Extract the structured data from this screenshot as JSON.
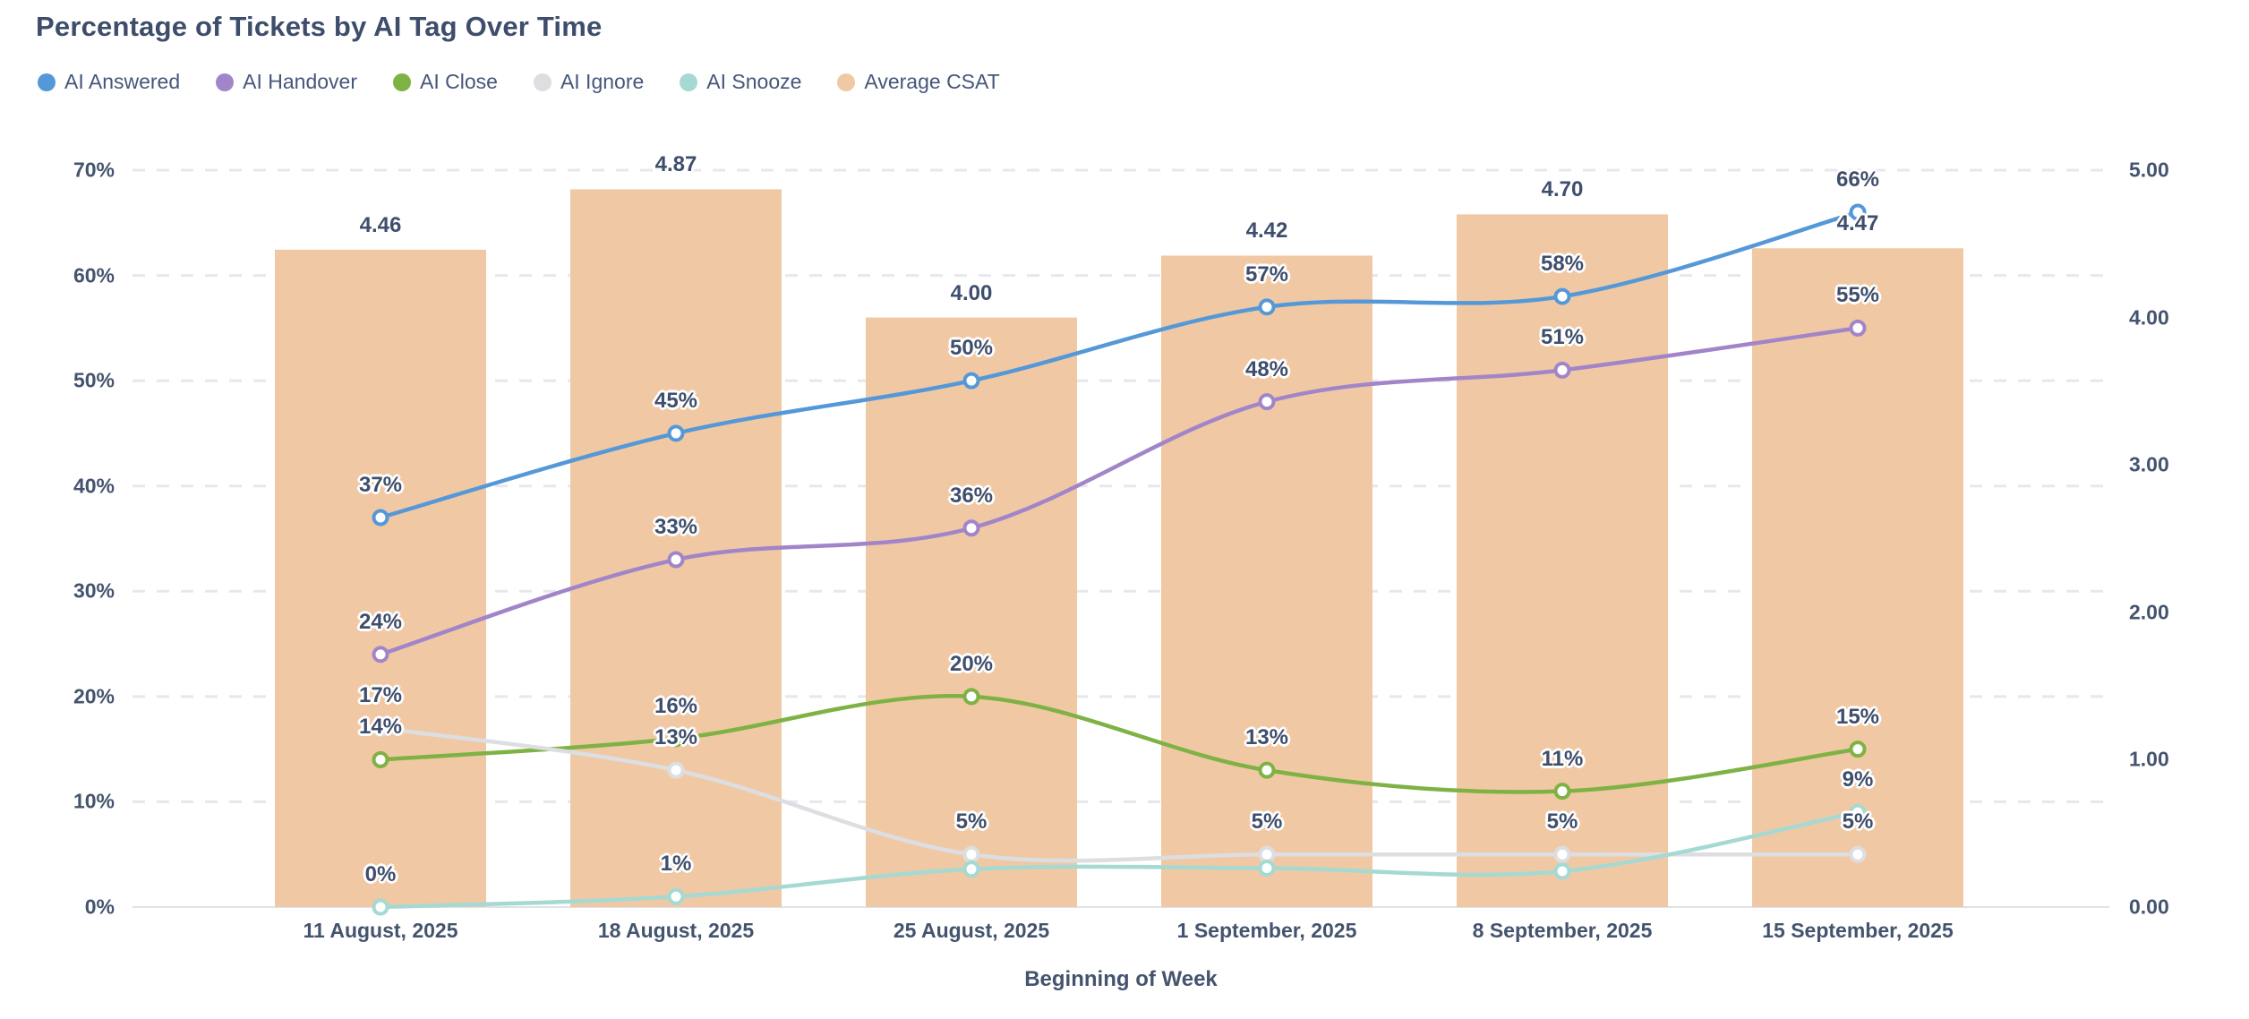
{
  "title": "Percentage of Tickets by AI Tag Over Time",
  "x_axis_title": "Beginning of Week",
  "colors": {
    "text": "#3e4e6c",
    "grid_dashed": "#e7e8ec",
    "baseline": "#dfe2e7",
    "bar": "#f0c9a4",
    "ai_answered": "#5598d8",
    "ai_handover": "#a285c9",
    "ai_close": "#7fb244",
    "ai_ignore": "#dcdee2",
    "ai_snooze": "#a5d9d2"
  },
  "chart_data": {
    "type": "bar",
    "subtype": "combo-bar-line",
    "categories": [
      "11 August, 2025",
      "18 August, 2025",
      "25 August, 2025",
      "1 September, 2025",
      "8 September, 2025",
      "15 September, 2025"
    ],
    "xlabel": "Beginning of Week",
    "grid": "horizontal-dashed",
    "legend_position": "top-left",
    "left_axis": {
      "unit": "%",
      "min": 0,
      "max": 70,
      "ticks": [
        "0%",
        "10%",
        "20%",
        "30%",
        "40%",
        "50%",
        "60%",
        "70%"
      ]
    },
    "right_axis": {
      "min": 0,
      "max": 5,
      "ticks": [
        "0.00",
        "1.00",
        "2.00",
        "3.00",
        "4.00",
        "5.00"
      ]
    },
    "bar_series": {
      "name": "Average CSAT",
      "axis": "right",
      "color": "#f0c9a4",
      "values": [
        4.46,
        4.87,
        4.0,
        4.42,
        4.7,
        4.47
      ],
      "labels": [
        "4.46",
        "4.87",
        "4.00",
        "4.42",
        "4.70",
        "4.47"
      ]
    },
    "line_series": [
      {
        "name": "AI Answered",
        "color": "#5598d8",
        "axis": "left",
        "values": [
          37,
          45,
          50,
          57,
          58,
          66
        ],
        "labels": [
          "37%",
          "45%",
          "50%",
          "57%",
          "58%",
          "66%"
        ]
      },
      {
        "name": "AI Handover",
        "color": "#a285c9",
        "axis": "left",
        "values": [
          24,
          33,
          36,
          48,
          51,
          55
        ],
        "labels": [
          "24%",
          "33%",
          "36%",
          "48%",
          "51%",
          "55%"
        ]
      },
      {
        "name": "AI Close",
        "color": "#7fb244",
        "axis": "left",
        "values": [
          14,
          16,
          20,
          13,
          11,
          15
        ],
        "labels": [
          "14%",
          "16%",
          "20%",
          "13%",
          "11%",
          "15%"
        ]
      },
      {
        "name": "AI Ignore",
        "color": "#dcdee2",
        "axis": "left",
        "values": [
          17,
          13,
          5,
          5,
          5,
          5
        ],
        "labels": [
          "17%",
          "13%",
          "5%",
          "5%",
          "5%",
          "5%"
        ]
      },
      {
        "name": "AI Snooze",
        "color": "#a5d9d2",
        "axis": "left",
        "values": [
          0,
          1,
          3.6,
          3.7,
          3.4,
          9
        ],
        "labels": [
          "0%",
          "1%",
          "",
          "",
          "",
          "9%"
        ]
      }
    ]
  }
}
